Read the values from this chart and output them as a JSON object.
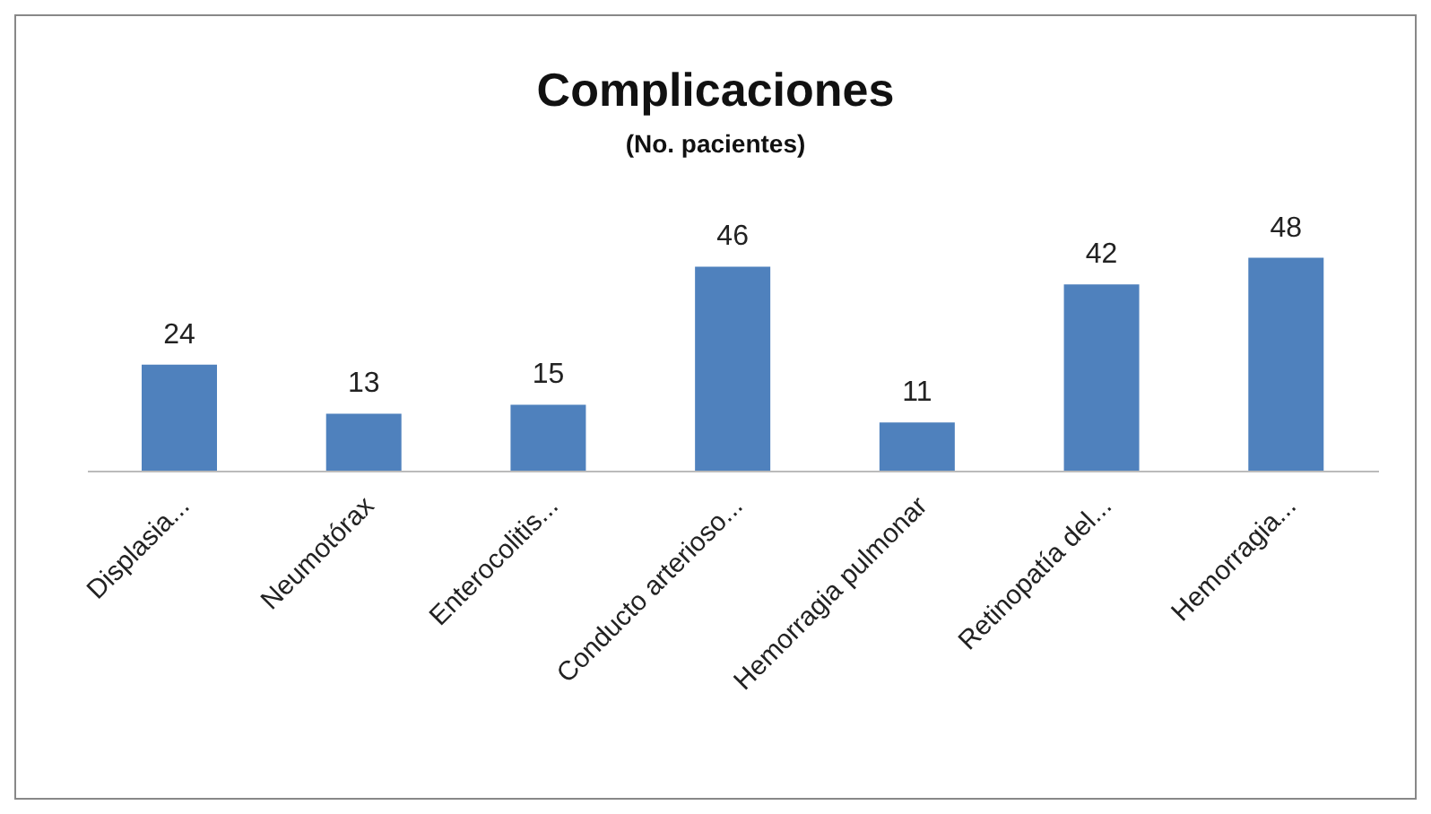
{
  "chart_data": {
    "type": "bar",
    "title": "Complicaciones",
    "subtitle": "(No. pacientes)",
    "categories": [
      "Displasia...",
      "Neumotórax",
      "Enterocolitis...",
      "Conducto arterioso...",
      "Hemorragia pulmonar",
      "Retinopatía del...",
      "Hemorragia..."
    ],
    "values": [
      24,
      13,
      15,
      46,
      11,
      42,
      48
    ],
    "color": "#4f81bd",
    "data_labels": true,
    "tick_labels": "x"
  }
}
